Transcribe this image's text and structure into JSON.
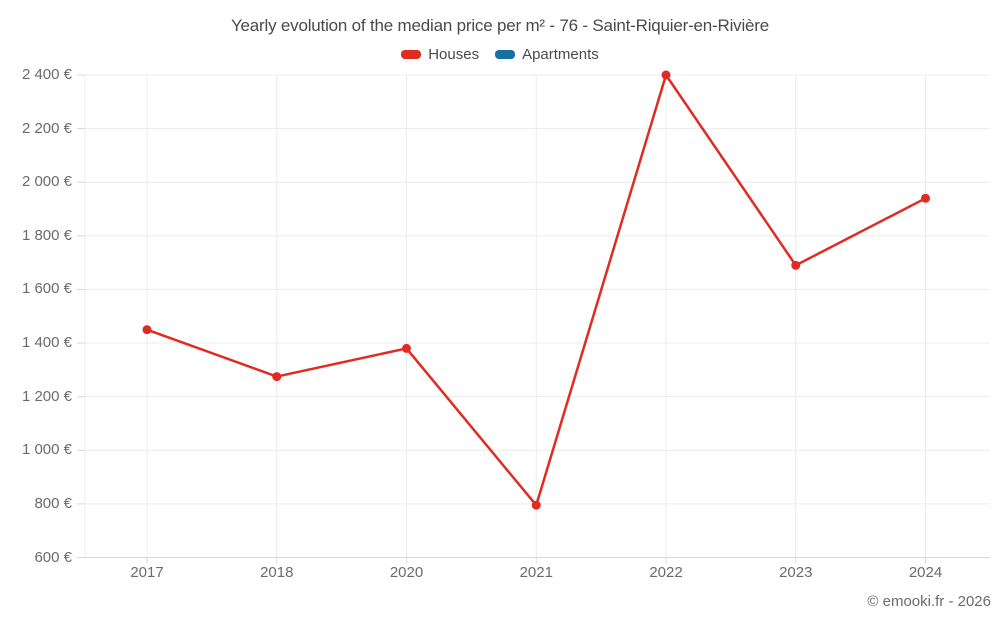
{
  "header": {
    "title": "Yearly evolution of the median price per m² - 76 - Saint-Riquier-en-Rivière"
  },
  "legend": {
    "items": [
      {
        "label": "Houses",
        "color": "#e02b23"
      },
      {
        "label": "Apartments",
        "color": "#17709f"
      }
    ]
  },
  "footer": {
    "copyright": "© emooki.fr - 2026"
  },
  "chart_data": {
    "type": "line",
    "title": "Yearly evolution of the median price per m² - 76 - Saint-Riquier-en-Rivière",
    "categories": [
      "2017",
      "2018",
      "2020",
      "2021",
      "2022",
      "2023",
      "2024"
    ],
    "series": [
      {
        "name": "Houses",
        "color": "#e02b23",
        "values": [
          1450,
          1275,
          1380,
          795,
          2400,
          1690,
          1940
        ]
      },
      {
        "name": "Apartments",
        "color": "#17709f",
        "values": []
      }
    ],
    "xlabel": "",
    "ylabel": "",
    "ylim": [
      600,
      2400
    ],
    "yticks": [
      600,
      800,
      1000,
      1200,
      1400,
      1600,
      1800,
      2000,
      2200,
      2400
    ],
    "ytick_labels": [
      "600 €",
      "800 €",
      "1 000 €",
      "1 200 €",
      "1 400 €",
      "1 600 €",
      "1 800 €",
      "2 000 €",
      "2 200 €",
      "2 400 €"
    ],
    "grid": true,
    "legend_position": "top",
    "colors": {
      "grid": "#ececec",
      "axis": "#d8d8d8",
      "text": "#6b6b6b"
    }
  }
}
